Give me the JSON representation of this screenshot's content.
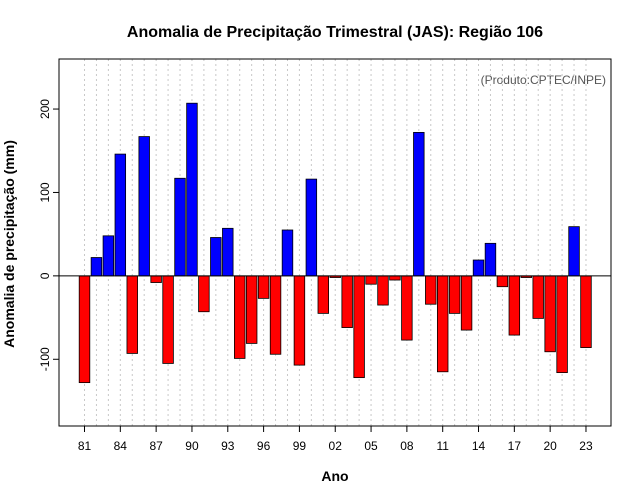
{
  "chart_data": {
    "type": "bar",
    "title": "Anomalia de Precipitação Trimestral (JAS): Região 106",
    "xlabel": "Ano",
    "ylabel": "Anomalia de precipitação (mm)",
    "annotation": "(Produto:CPTEC/INPE)",
    "ylim": [
      -180,
      260
    ],
    "yticks": [
      -100,
      0,
      100,
      200
    ],
    "categories": [
      "81",
      "82",
      "83",
      "84",
      "85",
      "86",
      "87",
      "88",
      "89",
      "90",
      "91",
      "92",
      "93",
      "94",
      "95",
      "96",
      "97",
      "98",
      "99",
      "00",
      "01",
      "02",
      "03",
      "04",
      "05",
      "06",
      "07",
      "08",
      "09",
      "10",
      "11",
      "12",
      "13",
      "14",
      "15",
      "16",
      "17",
      "18",
      "19",
      "20",
      "21",
      "22",
      "23"
    ],
    "values": [
      -128,
      22,
      48,
      146,
      -93,
      167,
      -8,
      -105,
      117,
      207,
      -43,
      46,
      57,
      -99,
      -81,
      -27,
      -94,
      55,
      -107,
      116,
      -45,
      -2,
      -62,
      -122,
      -10,
      -35,
      -5,
      -77,
      172,
      -34,
      -115,
      -45,
      -65,
      19,
      39,
      -13,
      -71,
      -2,
      -51,
      -91,
      -116,
      59,
      -86
    ],
    "xtick_labels": [
      "81",
      "84",
      "87",
      "90",
      "93",
      "96",
      "99",
      "02",
      "05",
      "08",
      "11",
      "14",
      "17",
      "20",
      "23"
    ],
    "colors": {
      "positive": "#0000ff",
      "negative": "#ff0000",
      "grid": "#c8c8c8",
      "frame": "#000000"
    }
  }
}
